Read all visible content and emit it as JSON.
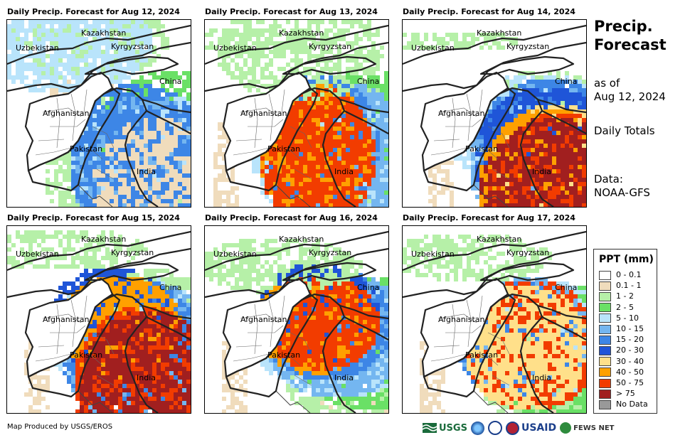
{
  "panels": [
    {
      "title": "Daily Precip. Forecast for Aug 12, 2024"
    },
    {
      "title": "Daily Precip. Forecast for Aug 13, 2024"
    },
    {
      "title": "Daily Precip. Forecast for Aug 14, 2024"
    },
    {
      "title": "Daily Precip. Forecast for Aug 15, 2024"
    },
    {
      "title": "Daily Precip. Forecast for Aug 16, 2024"
    },
    {
      "title": "Daily Precip. Forecast for Aug 17, 2024"
    }
  ],
  "map_labels": {
    "kazakhstan": "Kazakhstan",
    "uzbekistan": "Uzbekistan",
    "kyrgyzstan": "Kyrgyzstan",
    "china": "China",
    "afghanistan": "Afghanistan",
    "pakistan": "Pakistan",
    "india": "India"
  },
  "sidebar": {
    "title_line1": "Precip.",
    "title_line2": "Forecast",
    "asof_line1": "as of",
    "asof_line2": "Aug 12, 2024",
    "totals": "Daily Totals",
    "data_line1": "Data:",
    "data_line2": "NOAA-GFS"
  },
  "legend": {
    "title": "PPT (mm)",
    "items": [
      {
        "label": "0 - 0.1",
        "color": "#ffffff"
      },
      {
        "label": "0.1 - 1",
        "color": "#f0dcbc"
      },
      {
        "label": "1 - 2",
        "color": "#b6f0a8"
      },
      {
        "label": "2 - 5",
        "color": "#6ae066"
      },
      {
        "label": "5 - 10",
        "color": "#b9e4fb"
      },
      {
        "label": "10 - 15",
        "color": "#74b6f0"
      },
      {
        "label": "15 - 20",
        "color": "#3d86e6"
      },
      {
        "label": "20 - 30",
        "color": "#1f55d8"
      },
      {
        "label": "30 - 40",
        "color": "#ffe08a"
      },
      {
        "label": "40 - 50",
        "color": "#ffa000"
      },
      {
        "label": "50 - 75",
        "color": "#f23c00"
      },
      {
        "label": "> 75",
        "color": "#a11f1f"
      },
      {
        "label": "No Data",
        "color": "#999999"
      }
    ]
  },
  "credit": "Map Produced by USGS/EROS",
  "logos": {
    "usgs": "USGS",
    "usaid": "USAID",
    "fews": "FEWS NET"
  }
}
